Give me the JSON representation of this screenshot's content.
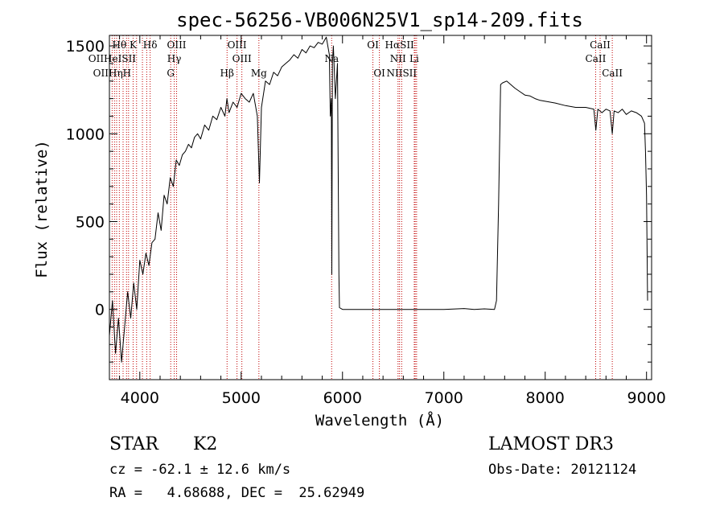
{
  "chart_data": {
    "type": "line",
    "title": "spec-56256-VB006N25V1_sp14-209.fits",
    "xlabel": "Wavelength (Å)",
    "ylabel": "Flux (relative)",
    "xlim": [
      3700,
      9050
    ],
    "ylim": [
      -400,
      1560
    ],
    "xticks": [
      4000,
      5000,
      6000,
      7000,
      8000,
      9000
    ],
    "yticks": [
      0,
      500,
      1000,
      1500
    ],
    "xtick_labels": [
      "4000",
      "5000",
      "6000",
      "7000",
      "8000",
      "9000"
    ],
    "ytick_labels": [
      "0",
      "500",
      "1000",
      "1500"
    ],
    "series": [
      {
        "name": "spectrum",
        "x": [
          3700,
          3730,
          3760,
          3790,
          3820,
          3850,
          3880,
          3910,
          3940,
          3970,
          4000,
          4030,
          4060,
          4090,
          4120,
          4150,
          4180,
          4210,
          4240,
          4270,
          4300,
          4330,
          4360,
          4390,
          4420,
          4450,
          4480,
          4510,
          4540,
          4570,
          4600,
          4640,
          4680,
          4720,
          4760,
          4800,
          4840,
          4860,
          4880,
          4920,
          4960,
          5000,
          5040,
          5080,
          5120,
          5160,
          5180,
          5200,
          5240,
          5280,
          5320,
          5360,
          5400,
          5440,
          5480,
          5520,
          5560,
          5600,
          5640,
          5680,
          5720,
          5760,
          5800,
          5840,
          5870,
          5880,
          5890,
          5895,
          5900,
          5910,
          5930,
          5950,
          5965,
          5970,
          6000,
          6500,
          7000,
          7200,
          7300,
          7400,
          7500,
          7520,
          7540,
          7560,
          7580,
          7620,
          7660,
          7700,
          7750,
          7800,
          7850,
          7900,
          7950,
          8000,
          8100,
          8200,
          8300,
          8400,
          8480,
          8500,
          8520,
          8540,
          8560,
          8600,
          8640,
          8662,
          8680,
          8720,
          8760,
          8800,
          8850,
          8900,
          8950,
          8980,
          8990,
          9000,
          9010
        ],
        "values": [
          -150,
          50,
          -250,
          -50,
          -300,
          -100,
          100,
          -50,
          150,
          0,
          280,
          200,
          320,
          250,
          380,
          400,
          550,
          450,
          650,
          600,
          750,
          700,
          850,
          820,
          880,
          900,
          940,
          920,
          980,
          1000,
          970,
          1050,
          1020,
          1100,
          1080,
          1150,
          1100,
          1200,
          1120,
          1180,
          1150,
          1230,
          1200,
          1180,
          1230,
          1100,
          720,
          1150,
          1300,
          1280,
          1350,
          1330,
          1380,
          1400,
          1420,
          1450,
          1430,
          1480,
          1460,
          1500,
          1490,
          1520,
          1510,
          1550,
          1450,
          1100,
          1200,
          200,
          1400,
          1500,
          1200,
          1400,
          200,
          10,
          0,
          0,
          0,
          5,
          0,
          3,
          0,
          50,
          600,
          1280,
          1290,
          1300,
          1280,
          1260,
          1240,
          1220,
          1215,
          1200,
          1190,
          1185,
          1175,
          1160,
          1150,
          1150,
          1140,
          1020,
          1140,
          1130,
          1120,
          1140,
          1130,
          1000,
          1130,
          1120,
          1140,
          1110,
          1130,
          1120,
          1100,
          1060,
          900,
          650,
          50
        ]
      }
    ],
    "lines_row1": [
      {
        "label": "Hθ",
        "x": 3798
      },
      {
        "label": "K",
        "x": 3934
      },
      {
        "label": "Hδ",
        "x": 4102
      },
      {
        "label": "OIII",
        "x": 4363
      },
      {
        "label": "OIII",
        "x": 4959
      },
      {
        "label": "OI",
        "x": 6300
      },
      {
        "label": "HαSII",
        "x": 6563
      },
      {
        "label": "CaII",
        "x": 8542
      }
    ],
    "lines_row2": [
      {
        "label": "OIIHeISII",
        "x": 3727
      },
      {
        "label": "Hγ",
        "x": 4340
      },
      {
        "label": "OIII",
        "x": 5007
      },
      {
        "label": "Na",
        "x": 5893
      },
      {
        "label": "NII",
        "x": 6548
      },
      {
        "label": "Li",
        "x": 6708
      },
      {
        "label": "CaII",
        "x": 8498
      }
    ],
    "lines_row3": [
      {
        "label": "OIIHηH",
        "x": 3727
      },
      {
        "label": "G",
        "x": 4305
      },
      {
        "label": "Hβ",
        "x": 4861
      },
      {
        "label": "Mg",
        "x": 5175
      },
      {
        "label": "OI",
        "x": 6364
      },
      {
        "label": "NIISII",
        "x": 6584
      },
      {
        "label": "CaII",
        "x": 8662
      }
    ],
    "marker_lines": [
      3727,
      3750,
      3771,
      3798,
      3835,
      3869,
      3889,
      3934,
      3968,
      4026,
      4068,
      4102,
      4305,
      4340,
      4363,
      4861,
      4959,
      5007,
      5175,
      5893,
      6300,
      6364,
      6548,
      6563,
      6584,
      6708,
      6717,
      6731,
      8498,
      8542,
      8662
    ]
  },
  "info": {
    "object_class": "STAR",
    "subclass": "K2",
    "survey": "LAMOST DR3",
    "cz_text": "cz = -62.1 ± 12.6 km/s",
    "obs_date_text": "Obs-Date: 20121124",
    "radec_text": "RA =   4.68688, DEC =  25.62949"
  },
  "colors": {
    "spectrum": "#000000",
    "marker": "#c00000",
    "axes": "#000000"
  }
}
